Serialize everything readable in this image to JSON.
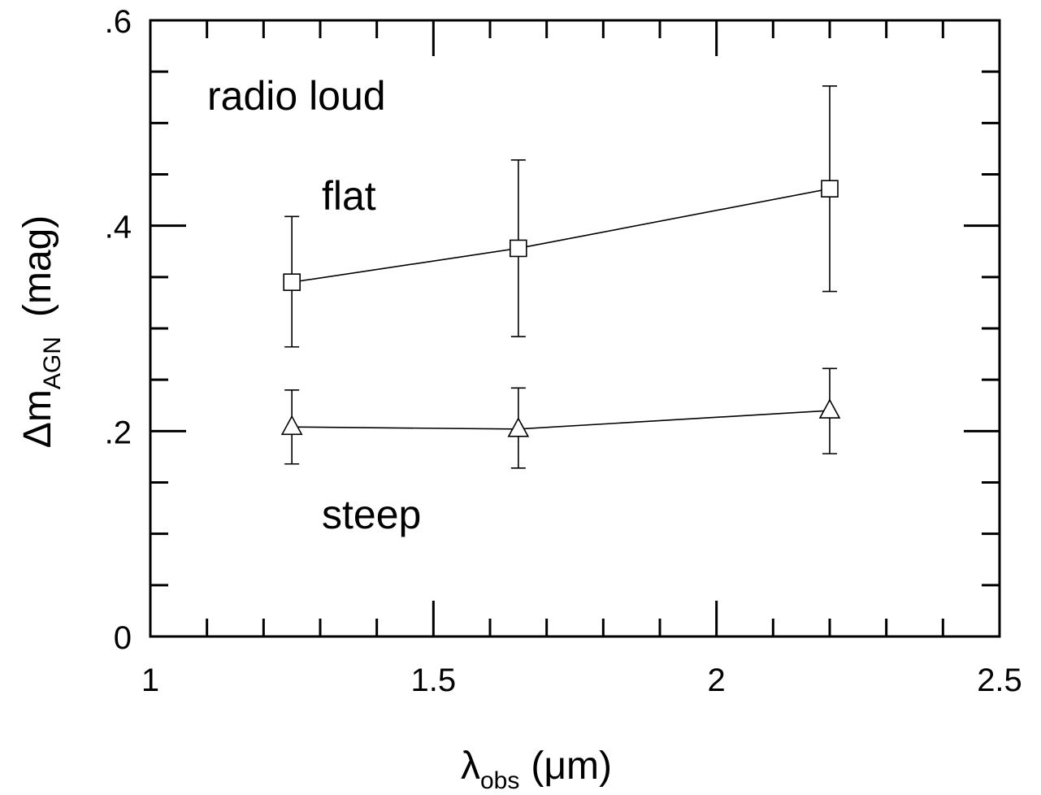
{
  "chart_data": {
    "type": "scatter",
    "title": "",
    "xlabel": {
      "main": "λ",
      "sub": "obs",
      "unit": "(μm)"
    },
    "ylabel": {
      "main": "Δm",
      "sub": "AGN",
      "unit": "(mag)"
    },
    "xlim": [
      1,
      2.5
    ],
    "ylim": [
      0,
      0.6
    ],
    "x_major_ticks": [
      1,
      1.5,
      2,
      2.5
    ],
    "x_tick_labels": [
      "1",
      "1.5",
      "2",
      "2.5"
    ],
    "x_minor_step": 0.1,
    "y_major_ticks": [
      0,
      0.2,
      0.4,
      0.6
    ],
    "y_tick_labels": [
      "0",
      ".2",
      ".4",
      ".6"
    ],
    "y_minor_step": 0.05,
    "grid": false,
    "annotations": [
      "radio loud",
      "flat",
      "steep"
    ],
    "series": [
      {
        "marker": "square",
        "x": [
          1.25,
          1.65,
          2.2
        ],
        "y": [
          0.345,
          0.378,
          0.436
        ],
        "err_low": [
          0.282,
          0.292,
          0.336
        ],
        "err_high": [
          0.409,
          0.464,
          0.536
        ]
      },
      {
        "marker": "triangle",
        "x": [
          1.25,
          1.65,
          2.2
        ],
        "y": [
          0.204,
          0.202,
          0.22
        ],
        "err_low": [
          0.168,
          0.164,
          0.178
        ],
        "err_high": [
          0.24,
          0.242,
          0.261
        ]
      }
    ]
  }
}
